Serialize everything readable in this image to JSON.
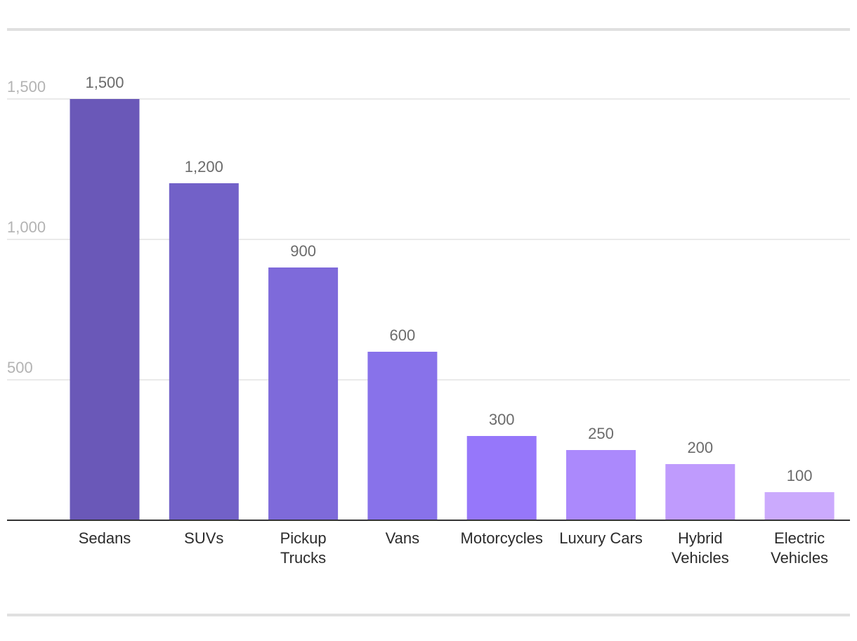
{
  "chart_data": {
    "type": "bar",
    "categories": [
      "Sedans",
      "SUVs",
      "Pickup Trucks",
      "Vans",
      "Motorcycles",
      "Luxury Cars",
      "Hybrid Vehicles",
      "Electric Vehicles"
    ],
    "category_lines": [
      [
        "Sedans"
      ],
      [
        "SUVs"
      ],
      [
        "Pickup",
        "Trucks"
      ],
      [
        "Vans"
      ],
      [
        "Motorcycles"
      ],
      [
        "Luxury Cars"
      ],
      [
        "Hybrid",
        "Vehicles"
      ],
      [
        "Electric",
        "Vehicles"
      ]
    ],
    "values": [
      1500,
      1200,
      900,
      600,
      300,
      250,
      200,
      100
    ],
    "value_labels": [
      "1,500",
      "1,200",
      "900",
      "600",
      "300",
      "250",
      "200",
      "100"
    ],
    "title": "",
    "xlabel": "",
    "ylabel": "",
    "ylim": [
      0,
      1500
    ],
    "yticks": [
      500,
      1000,
      1500
    ],
    "ytick_labels": [
      "500",
      "1,000",
      "1,500"
    ],
    "grid": true,
    "legend": "none",
    "colors": [
      "#6a58b8",
      "#7261c8",
      "#7e6ada",
      "#8872ea",
      "#9677fa",
      "#ab89fc",
      "#bf9bfd",
      "#cbaafd"
    ]
  }
}
